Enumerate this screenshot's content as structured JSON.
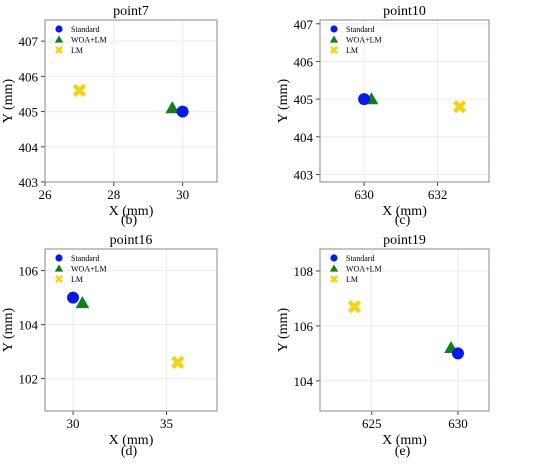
{
  "figure": {
    "legend_labels": [
      "Standard",
      "WOA+LM",
      "LM"
    ],
    "colors": {
      "standard": "#0a1ae6",
      "woa_lm": "#12801a",
      "lm": "#f5d21a",
      "grid": "#ececec",
      "axis": "#888888"
    }
  },
  "chart_data": [
    {
      "type": "scatter",
      "panel_label": "(b)",
      "title": "point7",
      "xlabel": "X (mm)",
      "ylabel": "Y (mm)",
      "xlim": [
        26,
        31
      ],
      "ylim": [
        403,
        407.6
      ],
      "xticks": [
        "26",
        "28",
        "30"
      ],
      "xtick_values": [
        26,
        28,
        30
      ],
      "yticks": [
        "403",
        "404",
        "405",
        "406",
        "407"
      ],
      "ytick_values": [
        403,
        404,
        405,
        406,
        407
      ],
      "grid": true,
      "legend_position": "top-left",
      "series": [
        {
          "name": "Standard",
          "marker": "circle",
          "x": [
            30.0
          ],
          "y": [
            405.0
          ]
        },
        {
          "name": "WOA+LM",
          "marker": "triangle",
          "x": [
            29.7
          ],
          "y": [
            405.1
          ]
        },
        {
          "name": "LM",
          "marker": "x",
          "x": [
            27.0
          ],
          "y": [
            405.6
          ]
        }
      ]
    },
    {
      "type": "scatter",
      "panel_label": "(c)",
      "title": "point10",
      "xlabel": "X (mm)",
      "ylabel": "Y (mm)",
      "xlim": [
        628.8,
        633.4
      ],
      "ylim": [
        402.8,
        407.1
      ],
      "xticks": [
        "630",
        "632"
      ],
      "xtick_values": [
        630,
        632
      ],
      "yticks": [
        "403",
        "404",
        "405",
        "406",
        "407"
      ],
      "ytick_values": [
        403,
        404,
        405,
        406,
        407
      ],
      "grid": true,
      "legend_position": "top-left",
      "series": [
        {
          "name": "Standard",
          "marker": "circle",
          "x": [
            630.0
          ],
          "y": [
            405.0
          ]
        },
        {
          "name": "WOA+LM",
          "marker": "triangle",
          "x": [
            630.2
          ],
          "y": [
            405.0
          ]
        },
        {
          "name": "LM",
          "marker": "x",
          "x": [
            632.6
          ],
          "y": [
            404.8
          ]
        }
      ]
    },
    {
      "type": "scatter",
      "panel_label": "(d)",
      "title": "point16",
      "xlabel": "X (mm)",
      "ylabel": "Y (mm)",
      "xlim": [
        28.5,
        37.7
      ],
      "ylim": [
        100.8,
        106.8
      ],
      "xticks": [
        "30",
        "35"
      ],
      "xtick_values": [
        30,
        35
      ],
      "yticks": [
        "102",
        "104",
        "106"
      ],
      "ytick_values": [
        102,
        104,
        106
      ],
      "grid": true,
      "legend_position": "top-left",
      "series": [
        {
          "name": "Standard",
          "marker": "circle",
          "x": [
            30.0
          ],
          "y": [
            105.0
          ]
        },
        {
          "name": "WOA+LM",
          "marker": "triangle",
          "x": [
            30.5
          ],
          "y": [
            104.8
          ]
        },
        {
          "name": "LM",
          "marker": "x",
          "x": [
            35.6
          ],
          "y": [
            102.6
          ]
        }
      ]
    },
    {
      "type": "scatter",
      "panel_label": "(e)",
      "title": "point19",
      "xlabel": "X (mm)",
      "ylabel": "Y (mm)",
      "xlim": [
        622.0,
        631.8
      ],
      "ylim": [
        102.9,
        108.8
      ],
      "xticks": [
        "625",
        "630"
      ],
      "xtick_values": [
        625,
        630
      ],
      "yticks": [
        "104",
        "106",
        "108"
      ],
      "ytick_values": [
        104,
        106,
        108
      ],
      "grid": true,
      "legend_position": "top-left",
      "series": [
        {
          "name": "Standard",
          "marker": "circle",
          "x": [
            630.0
          ],
          "y": [
            105.0
          ]
        },
        {
          "name": "WOA+LM",
          "marker": "triangle",
          "x": [
            629.6
          ],
          "y": [
            105.2
          ]
        },
        {
          "name": "LM",
          "marker": "x",
          "x": [
            624.0
          ],
          "y": [
            106.7
          ]
        }
      ]
    }
  ]
}
